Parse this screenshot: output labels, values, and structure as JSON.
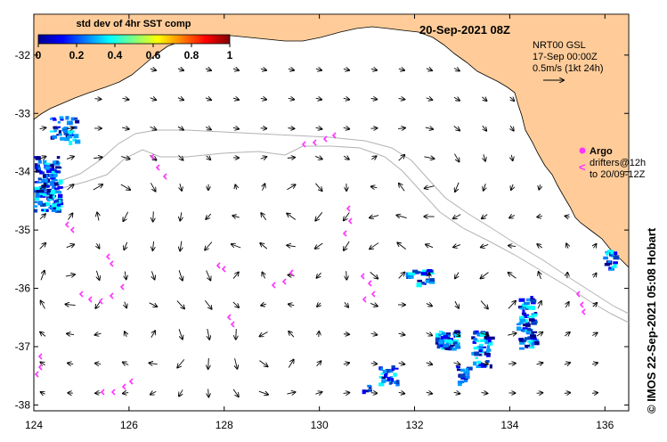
{
  "map": {
    "date_title": "20-Sep-2021 08Z",
    "lon_range": [
      124,
      136.5
    ],
    "lat_range": [
      -38.1,
      -31.3
    ],
    "lon_ticks": [
      "124",
      "126",
      "128",
      "130",
      "132",
      "134",
      "136"
    ],
    "lat_ticks": [
      "-32",
      "-33",
      "-34",
      "-35",
      "-36",
      "-37",
      "-38"
    ],
    "land_color": "#ffcc99",
    "sea_color": "#ffffff"
  },
  "colorbar": {
    "title": "std dev of 4hr SST comp",
    "tick_labels": [
      "0",
      "0.2",
      "0.4",
      "0.6",
      "0.8",
      "1"
    ],
    "colors": [
      "#00008f",
      "#0000ff",
      "#0080ff",
      "#00ffff",
      "#80ff80",
      "#ffff00",
      "#ff8000",
      "#ff0000",
      "#800000"
    ]
  },
  "current_legend": {
    "line1": "NRT00 GSL",
    "line2": "17-Sep 00:00Z",
    "line3": "0.5m/s (1kt 24h)"
  },
  "argo_legend": {
    "argo_label": "Argo",
    "drifters_line1": "drifters@12h",
    "drifters_line2": "to 20/09-12Z",
    "marker_color": "#ff33ff"
  },
  "credit": "© IMOS 22-Sep-2021 05:08 Hobart"
}
